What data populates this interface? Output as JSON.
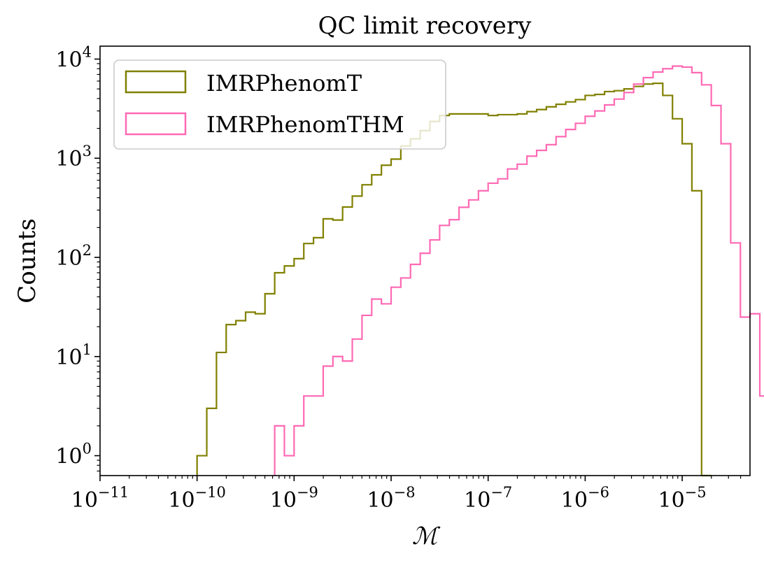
{
  "chart_data": {
    "type": "histogram",
    "title": "QC limit recovery",
    "xlabel": "ℳ",
    "ylabel": "Counts",
    "xscale": "log",
    "yscale": "log",
    "xlim": [
      1e-11,
      5e-05
    ],
    "ylim": [
      0.63,
      13500
    ],
    "grid": false,
    "legend_position": "top-left",
    "x_ticks": [
      {
        "base": "10",
        "exp": "−11",
        "value": 1e-11
      },
      {
        "base": "10",
        "exp": "−10",
        "value": 1e-10
      },
      {
        "base": "10",
        "exp": "−9",
        "value": 1e-09
      },
      {
        "base": "10",
        "exp": "−8",
        "value": 1e-08
      },
      {
        "base": "10",
        "exp": "−7",
        "value": 1e-07
      },
      {
        "base": "10",
        "exp": "−6",
        "value": 1e-06
      },
      {
        "base": "10",
        "exp": "−5",
        "value": 1e-05
      }
    ],
    "y_ticks": [
      {
        "base": "10",
        "exp": "0",
        "value": 1
      },
      {
        "base": "10",
        "exp": "1",
        "value": 10
      },
      {
        "base": "10",
        "exp": "2",
        "value": 100
      },
      {
        "base": "10",
        "exp": "3",
        "value": 1000
      },
      {
        "base": "10",
        "exp": "4",
        "value": 10000
      }
    ],
    "bin_log10_start": -10.0,
    "bin_log10_width": 0.1,
    "series": [
      {
        "name": "IMRPhenomT",
        "color": "#808000",
        "counts": [
          1,
          3,
          11,
          21,
          23,
          28,
          27,
          43,
          70,
          82,
          97,
          138,
          158,
          245,
          238,
          322,
          415,
          540,
          680,
          850,
          980,
          1330,
          1570,
          1900,
          2350,
          2700,
          2800,
          2800,
          2800,
          2800,
          2700,
          2750,
          2750,
          2800,
          2950,
          3100,
          3300,
          3500,
          3700,
          3900,
          4300,
          4400,
          4700,
          4800,
          5000,
          5300,
          5600,
          5700,
          4300,
          2500,
          1400,
          470,
          0
        ]
      },
      {
        "name": "IMRPhenomTHM",
        "color": "#ff69b4",
        "bin_start_index": 8,
        "counts": [
          2,
          1,
          2,
          4,
          4,
          8,
          10,
          9,
          15,
          26,
          38,
          34,
          50,
          62,
          85,
          110,
          150,
          210,
          240,
          320,
          380,
          470,
          560,
          620,
          780,
          870,
          1050,
          1200,
          1370,
          1650,
          1950,
          2250,
          2650,
          3000,
          3450,
          3950,
          4600,
          5600,
          6500,
          7400,
          8000,
          8500,
          8300,
          7300,
          5500,
          3400,
          1400,
          140,
          25,
          27,
          4
        ]
      }
    ]
  }
}
